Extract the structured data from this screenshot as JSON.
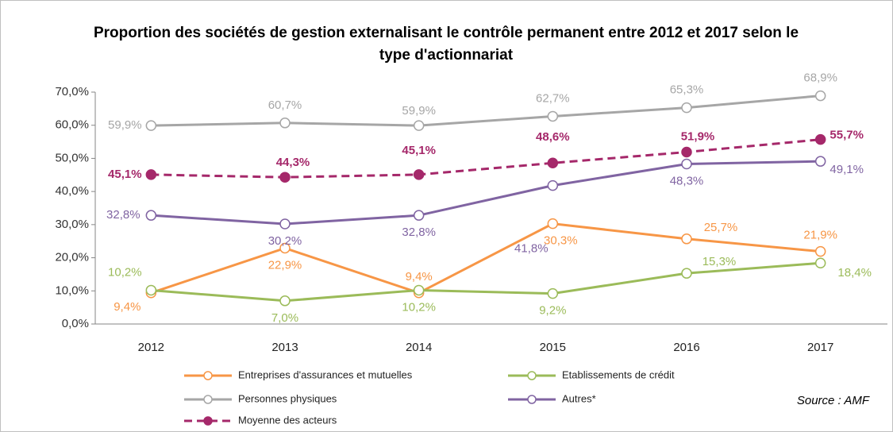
{
  "chart_data": {
    "type": "line",
    "title": "Proportion des sociétés de gestion externalisant le contrôle permanent entre 2012 et 2017 selon le type d'actionnariat",
    "categories": [
      "2012",
      "2013",
      "2014",
      "2015",
      "2016",
      "2017"
    ],
    "series": [
      {
        "name": "Entreprises d'assurances  et mutuelles",
        "color": "#f79646",
        "values": [
          9.4,
          22.9,
          9.4,
          30.3,
          25.7,
          21.9
        ],
        "value_labels": [
          "9,4%",
          "22,9%",
          "9,4%",
          "30,3%",
          "25,7%",
          "21,9%"
        ]
      },
      {
        "name": "Etablissements de crédit",
        "color": "#9bbb59",
        "values": [
          10.2,
          7.0,
          10.2,
          9.2,
          15.3,
          18.4
        ],
        "value_labels": [
          "10,2%",
          "7,0%",
          "10,2%",
          "9,2%",
          "15,3%",
          "18,4%"
        ]
      },
      {
        "name": "Personnes physiques",
        "color": "#a6a6a6",
        "values": [
          59.9,
          60.7,
          59.9,
          62.7,
          65.3,
          68.9
        ],
        "value_labels": [
          "59,9%",
          "60,7%",
          "59,9%",
          "62,7%",
          "65,3%",
          "68,9%"
        ]
      },
      {
        "name": "Autres*",
        "color": "#8064a2",
        "values": [
          32.8,
          30.2,
          32.8,
          41.8,
          48.3,
          49.1
        ],
        "value_labels": [
          "32,8%",
          "30,2%",
          "32,8%",
          "41,8%",
          "48,3%",
          "49,1%"
        ]
      },
      {
        "name": "Moyenne des acteurs",
        "color": "#a5286a",
        "dashed": true,
        "values": [
          45.1,
          44.3,
          45.1,
          48.6,
          51.9,
          55.7
        ],
        "value_labels": [
          "45,1%",
          "44,3%",
          "45,1%",
          "48,6%",
          "51,9%",
          "55,7%"
        ]
      }
    ],
    "ylim": [
      0,
      70
    ],
    "yticks": [
      {
        "value": 0,
        "label": "0,0%"
      },
      {
        "value": 10,
        "label": "10,0%"
      },
      {
        "value": 20,
        "label": "20,0%"
      },
      {
        "value": 30,
        "label": "30,0%"
      },
      {
        "value": 40,
        "label": "40,0%"
      },
      {
        "value": 50,
        "label": "50,0%"
      },
      {
        "value": 60,
        "label": "60,0%"
      },
      {
        "value": 70,
        "label": "70,0%"
      }
    ],
    "grid": false,
    "annotations": [
      "Source : AMF"
    ]
  }
}
